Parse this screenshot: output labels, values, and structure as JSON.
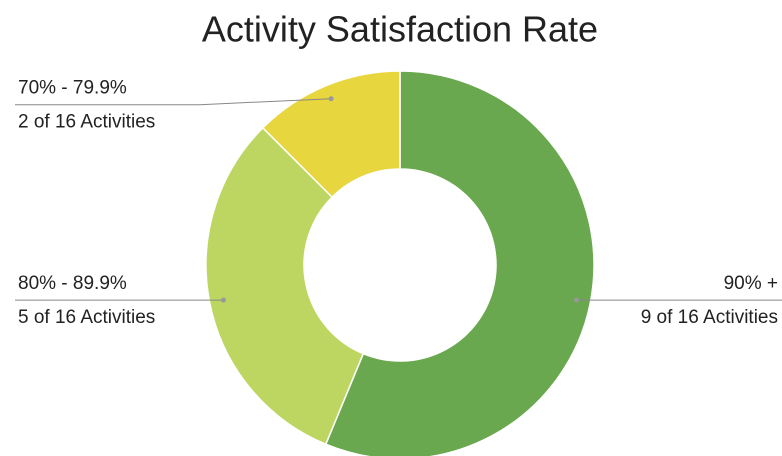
{
  "chart_data": {
    "type": "pie",
    "donut": true,
    "title": "Activity Satisfaction Rate",
    "categories": [
      "90% +",
      "80% - 89.9%",
      "70% - 79.9%"
    ],
    "values": [
      9,
      5,
      2
    ],
    "value_labels": [
      "9 of 16 Activities",
      "5 of 16 Activities",
      "2 of 16 Activities"
    ],
    "colors": [
      "#6aa84f",
      "#bcd661",
      "#e8d63e"
    ]
  }
}
